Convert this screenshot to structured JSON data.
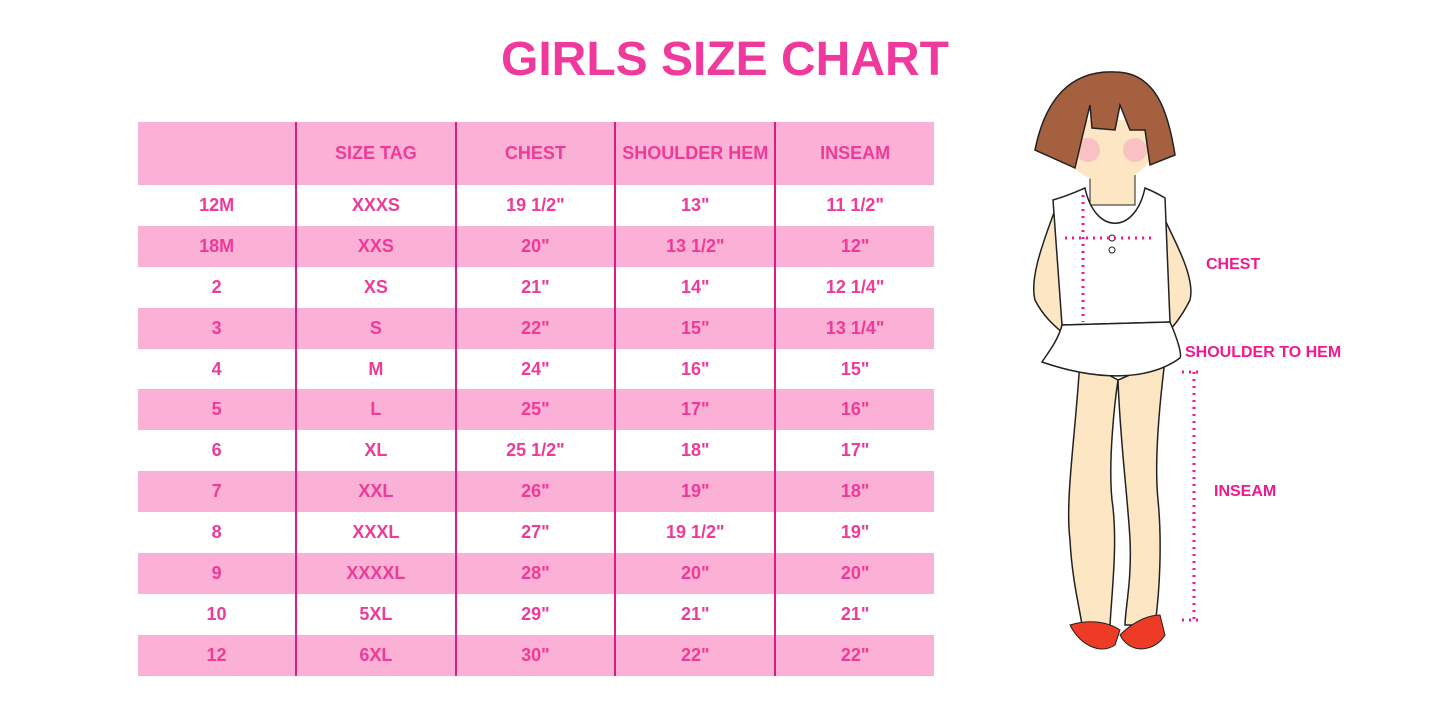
{
  "title": "GIRLS SIZE CHART",
  "table": {
    "headers": [
      "",
      "SIZE TAG",
      "CHEST",
      "SHOULDER HEM",
      "INSEAM"
    ],
    "rows": [
      [
        "12M",
        "XXXS",
        "19 1/2\"",
        "13\"",
        "11 1/2\""
      ],
      [
        "18M",
        "XXS",
        "20\"",
        "13 1/2\"",
        "12\""
      ],
      [
        "2",
        "XS",
        "21\"",
        "14\"",
        "12 1/4\""
      ],
      [
        "3",
        "S",
        "22\"",
        "15\"",
        "13 1/4\""
      ],
      [
        "4",
        "M",
        "24\"",
        "16\"",
        "15\""
      ],
      [
        "5",
        "L",
        "25\"",
        "17\"",
        "16\""
      ],
      [
        "6",
        "XL",
        "25 1/2\"",
        "18\"",
        "17\""
      ],
      [
        "7",
        "XXL",
        "26\"",
        "19\"",
        "18\""
      ],
      [
        "8",
        "XXXL",
        "27\"",
        "19 1/2\"",
        "19\""
      ],
      [
        "9",
        "XXXXL",
        "28\"",
        "20\"",
        "20\""
      ],
      [
        "10",
        "5XL",
        "29\"",
        "21\"",
        "21\""
      ],
      [
        "12",
        "6XL",
        "30\"",
        "22\"",
        "22\""
      ]
    ]
  },
  "figure": {
    "labels": {
      "chest": "CHEST",
      "shoulder_to_hem": "SHOULDER TO HEM",
      "inseam": "INSEAM"
    }
  },
  "colors": {
    "accent": "#f0399c",
    "row_pink": "#fbb0d5",
    "divider": "#e0198a"
  }
}
